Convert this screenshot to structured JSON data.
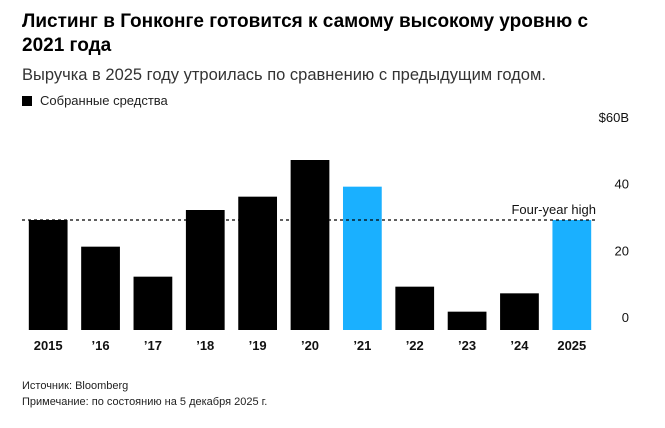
{
  "chart_data": {
    "type": "bar",
    "title": "Листинг в Гонконге готовится к самому высокому уровню с 2021 года",
    "subtitle": "Выручка в 2025 году утроилась по сравнению с предыдущим годом.",
    "categories": [
      "2015",
      "’16",
      "’17",
      "’18",
      "’19",
      "’20",
      "’21",
      "’22",
      "’23",
      "’24",
      "2025"
    ],
    "series": [
      {
        "name": "Собранные средства",
        "color": "#000000",
        "values": [
          33,
          25,
          16,
          36,
          40,
          51,
          43,
          13,
          5.5,
          11,
          33
        ],
        "bar_colors": [
          "#000000",
          "#000000",
          "#000000",
          "#000000",
          "#000000",
          "#000000",
          "#1ab0ff",
          "#000000",
          "#000000",
          "#000000",
          "#1ab0ff"
        ]
      }
    ],
    "ylim": [
      0,
      60
    ],
    "yticks": [
      0,
      20,
      40,
      {
        "value": 60,
        "label": "$60B"
      }
    ],
    "reference_line": {
      "value": 33,
      "label": "Four-year high"
    },
    "source": "Источник: Bloomberg",
    "note": "Примечание: по состоянию на 5 декабря 2025 г."
  }
}
